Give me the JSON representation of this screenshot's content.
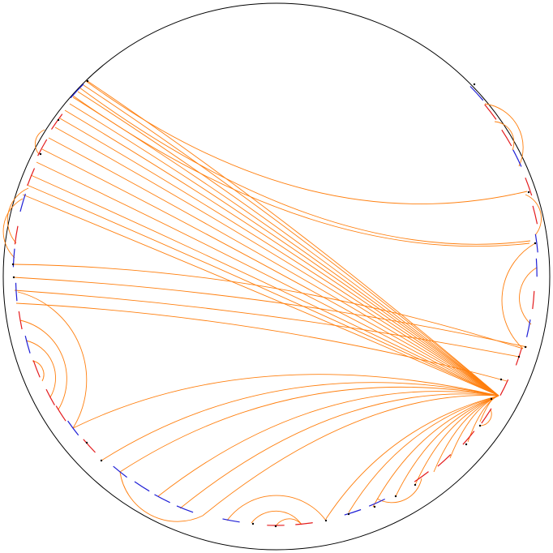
{
  "colors": {
    "boundary": "#000000",
    "arc": "#ff7f0e",
    "segment_red": "#e41a1c",
    "segment_blue": "#1f1fd6",
    "node": "#000000"
  },
  "chart_data": {
    "type": "diagram",
    "title": "",
    "description_of_structure": "",
    "long_arcs_to_right_hub": 14,
    "long_arcs_right_side": 6,
    "bottom_arcs": 12,
    "local_arcs": 30
  }
}
